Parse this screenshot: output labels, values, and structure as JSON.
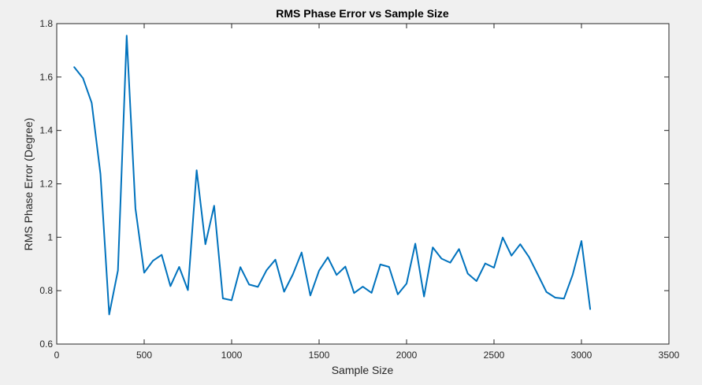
{
  "window": {
    "background": "#f0f0f0"
  },
  "chart_data": {
    "type": "line",
    "title": "RMS Phase Error vs Sample Size",
    "xlabel": "Sample Size",
    "ylabel": "RMS Phase Error (Degree)",
    "xlim": [
      0,
      3500
    ],
    "ylim": [
      0.6,
      1.8
    ],
    "xticks": [
      0,
      500,
      1000,
      1500,
      2000,
      2500,
      3000,
      3500
    ],
    "yticks": [
      0.6,
      0.8,
      1.0,
      1.2,
      1.4,
      1.6,
      1.8
    ],
    "xtick_labels": [
      "0",
      "500",
      "1000",
      "1500",
      "2000",
      "2500",
      "3000",
      "3500"
    ],
    "ytick_labels": [
      "0.6",
      "0.8",
      "1",
      "1.2",
      "1.4",
      "1.6",
      "1.8"
    ],
    "grid": false,
    "line_color": "#0072bd",
    "series": [
      {
        "x": [
          100,
          150,
          200,
          250,
          300,
          350,
          400,
          450,
          500,
          550,
          600,
          650,
          700,
          750,
          800,
          850,
          900,
          950,
          1000,
          1050,
          1100,
          1150,
          1200,
          1250,
          1300,
          1350,
          1400,
          1450,
          1500,
          1550,
          1600,
          1650,
          1700,
          1750,
          1800,
          1850,
          1900,
          1950,
          2000,
          2050,
          2100,
          2150,
          2200,
          2250,
          2300,
          2350,
          2400,
          2450,
          2500,
          2550,
          2600,
          2650,
          2700,
          2750,
          2800,
          2850,
          2900,
          2950,
          3000,
          3050
        ],
        "y": [
          1.637,
          1.596,
          1.503,
          1.237,
          0.711,
          0.876,
          1.755,
          1.108,
          0.867,
          0.912,
          0.934,
          0.817,
          0.889,
          0.802,
          1.251,
          0.974,
          1.118,
          0.771,
          0.764,
          0.888,
          0.823,
          0.814,
          0.877,
          0.916,
          0.796,
          0.861,
          0.943,
          0.782,
          0.875,
          0.925,
          0.859,
          0.89,
          0.791,
          0.815,
          0.792,
          0.898,
          0.889,
          0.786,
          0.826,
          0.976,
          0.778,
          0.962,
          0.92,
          0.905,
          0.956,
          0.864,
          0.836,
          0.902,
          0.886,
          0.999,
          0.931,
          0.974,
          0.926,
          0.861,
          0.795,
          0.774,
          0.77,
          0.86,
          0.986,
          0.731
        ]
      }
    ]
  }
}
